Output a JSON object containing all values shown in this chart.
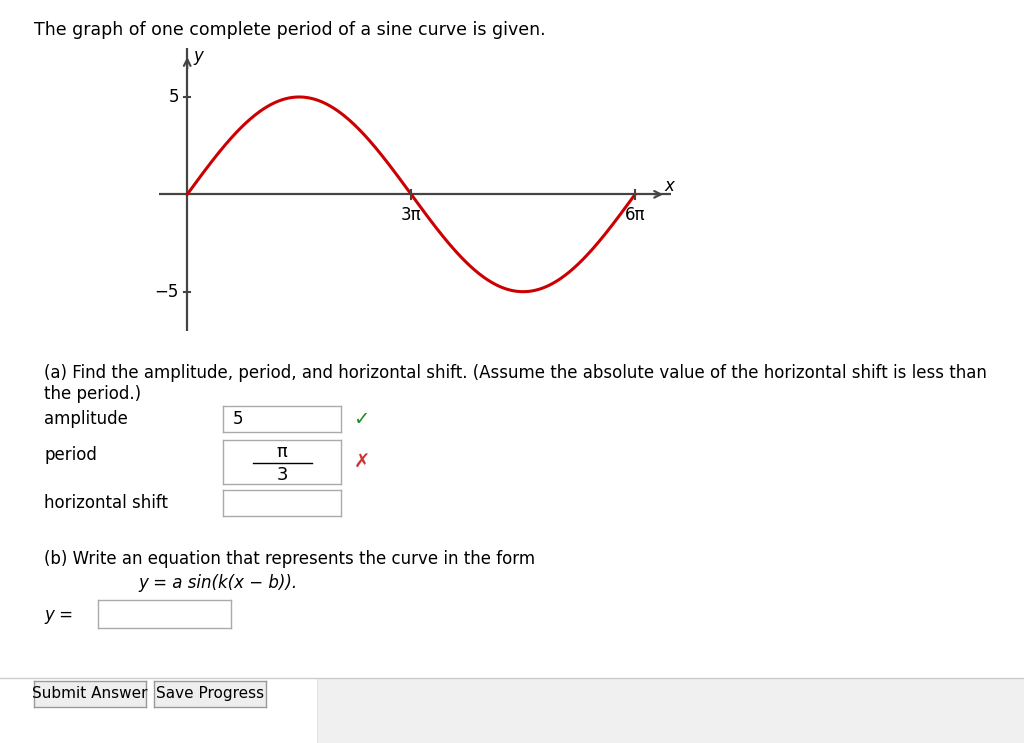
{
  "title": "The graph of one complete period of a sine curve is given.",
  "title_fontsize": 12.5,
  "background_color": "#ffffff",
  "graph": {
    "amplitude": 5,
    "curve_color": "#cc0000",
    "axis_color": "#444444",
    "tick_label_5": "5",
    "tick_label_neg5": "−5",
    "x_label_3pi": "3π",
    "x_label_6pi": "6π",
    "x_axis_label": "x",
    "y_axis_label": "y"
  },
  "part_a": {
    "text_line1": "(a) Find the amplitude, period, and horizontal shift. (Assume the absolute value of the horizontal shift is less than",
    "text_line2": "the period.)",
    "amplitude_label": "amplitude",
    "amplitude_value": "5",
    "check_color": "#228B22",
    "period_label": "period",
    "period_value_top": "π",
    "period_value_bot": "3",
    "cross_color": "#cc3333",
    "hshift_label": "horizontal shift"
  },
  "part_b": {
    "text_line1": "(b) Write an equation that represents the curve in the form",
    "text_line2": "y = a sin(k(x − b)).",
    "y_label": "y ="
  },
  "buttons": {
    "submit": "Submit Answer",
    "save": "Save Progress"
  }
}
